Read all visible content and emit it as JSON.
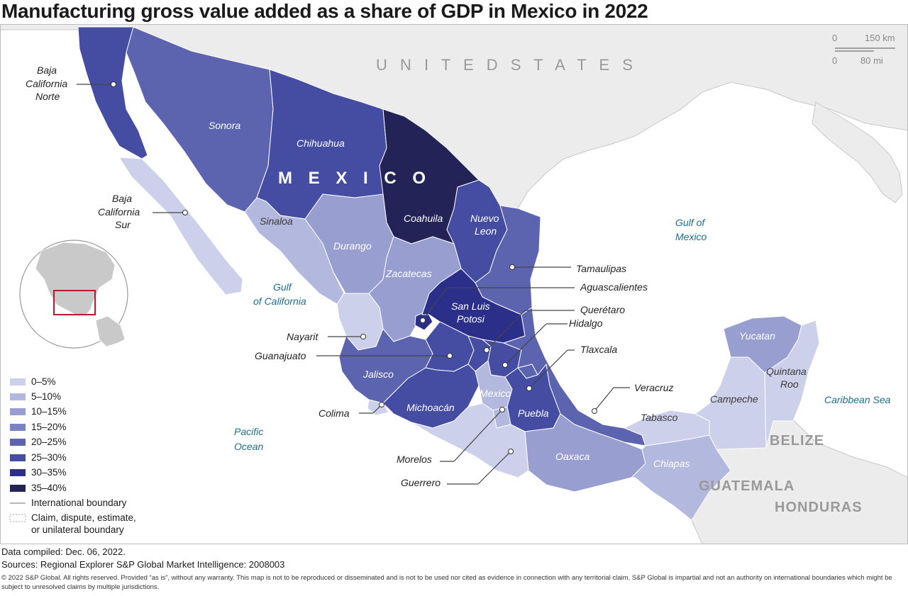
{
  "title": "Manufacturing gross value added as a share of GDP in Mexico in 2022",
  "colors": {
    "bin_0_5": "#ccd0ea",
    "bin_5_10": "#b2b8de",
    "bin_10_15": "#989fd0",
    "bin_15_20": "#7a82c2",
    "bin_20_25": "#5c64b0",
    "bin_25_30": "#454da3",
    "bin_30_35": "#2c2f8a",
    "bin_35_40": "#242358",
    "land_other": "#ececec",
    "ocean": "#ffffff",
    "water_label": "#1f6f8b",
    "inset_highlight": "#c0172f"
  },
  "labels": {
    "united_states": "U N I T E D     S T A T E S",
    "mexico": "M E X I C O",
    "belize": "BELIZE",
    "guatemala": "GUATEMALA",
    "honduras": "HONDURAS",
    "gulf_of_mexico_1": "Gulf of",
    "gulf_of_mexico_2": "Mexico",
    "gulf_of_california_1": "Gulf",
    "gulf_of_california_2": "of California",
    "pacific_1": "Pacific",
    "pacific_2": "Ocean",
    "caribbean": "Caribbean Sea"
  },
  "states": {
    "sonora": "Sonora",
    "chihuahua": "Chihuahua",
    "coahuila": "Coahuila",
    "nuevo_leon_1": "Nuevo",
    "nuevo_leon_2": "Leon",
    "sinaloa": "Sinaloa",
    "durango": "Durango",
    "zacatecas": "Zacatecas",
    "san_luis_potosi_1": "San Luis",
    "san_luis_potosi_2": "Potosi",
    "jalisco": "Jalisco",
    "michoacan": "Michoacán",
    "mexico": "Mexico",
    "puebla": "Puebla",
    "oaxaca": "Oaxaca",
    "chiapas": "Chiapas",
    "tabasco": "Tabasco",
    "campeche": "Campeche",
    "yucatan": "Yucatan",
    "quintana_roo_1": "Quintana",
    "quintana_roo_2": "Roo"
  },
  "callouts": {
    "baja_california_norte_1": "Baja",
    "baja_california_norte_2": "California",
    "baja_california_norte_3": "Norte",
    "baja_california_sur_1": "Baja",
    "baja_california_sur_2": "California",
    "baja_california_sur_3": "Sur",
    "tamaulipas": "Tamaulipas",
    "aguascalientes": "Aguascalientes",
    "queretaro": "Querétaro",
    "hidalgo": "Hidalgo",
    "tlaxcala": "Tlaxcala",
    "veracruz": "Veracruz",
    "nayarit": "Nayarit",
    "guanajuato": "Guanajuato",
    "colima": "Colima",
    "morelos": "Morelos",
    "guerrero": "Guerrero"
  },
  "scale_bar": {
    "km_zero": "0",
    "km_label": "150 km",
    "mi_zero": "0",
    "mi_label": "80 mi"
  },
  "legend": {
    "items": [
      "0–5%",
      "5–10%",
      "10–15%",
      "15–20%",
      "20–25%",
      "25–30%",
      "30–35%",
      "35–40%"
    ],
    "international_boundary": "International boundary",
    "claim_1": "Claim, dispute, estimate,",
    "claim_2": "or unilateral boundary"
  },
  "footer": {
    "compiled": "Data compiled: Dec. 06, 2022.",
    "sources": "Sources: Regional Explorer S&P Global Market Intelligence: 2008003",
    "disclaimer": "© 2022 S&P Global. All rights reserved. Provided “as is”, without any warranty. This map is not to be reproduced or disseminated and is not to be used nor cited as evidence in connection with any territorial claim. S&P Global is impartial and not an authority on international boundaries which might be subject to unresolved claims by multiple jurisdictions."
  }
}
